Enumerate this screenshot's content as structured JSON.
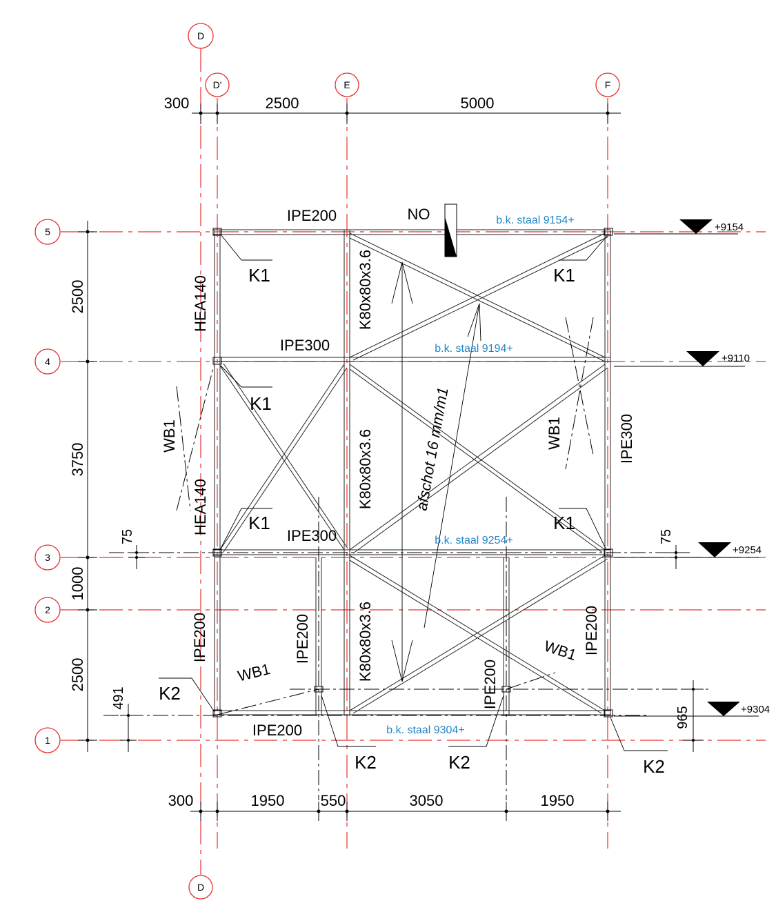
{
  "grid_labels": {
    "top_d": "D",
    "d_prime": "D'",
    "e": "E",
    "f": "F",
    "bottom_d": "D",
    "row1": "1",
    "row2": "2",
    "row3": "3",
    "row4": "4",
    "row5": "5"
  },
  "dims_top": {
    "d1": "300",
    "d2": "2500",
    "d3": "5000"
  },
  "dims_bottom": {
    "d1": "300",
    "d2": "1950",
    "d3": "550",
    "d4": "3050",
    "d5": "1950"
  },
  "dims_left": {
    "d1": "2500",
    "d2": "3750",
    "d3": "1000",
    "d4": "2500",
    "d5": "75",
    "d6": "491"
  },
  "dims_right": {
    "d1": "75",
    "d2": "965"
  },
  "levels": {
    "l1": "+9154",
    "l2": "+9110",
    "l3": "+9254",
    "l4": "+9304"
  },
  "steel_notes": {
    "n1": "b.k. staal 9154+",
    "n2": "b.k. staal 9194+",
    "n3": "b.k. staal 9254+",
    "n4": "b.k. staal 9304+"
  },
  "members": {
    "ipe200_top": "IPE200",
    "ipe300_mid": "IPE300",
    "ipe300_low": "IPE300",
    "ipe200_bottom": "IPE200",
    "hea140_upper": "HEA140",
    "hea140_lower": "HEA140",
    "k80_upper": "K80x80x3.6",
    "k80_mid": "K80x80x3.6",
    "k80_low": "K80x80x3.6",
    "ipe300_right": "IPE300",
    "ipe200_v1": "IPE200",
    "ipe200_v2": "IPE200",
    "ipe200_v3": "IPE200",
    "ipe200_v4": "IPE200"
  },
  "connections": {
    "k1_a": "K1",
    "k1_b": "K1",
    "k1_c": "K1",
    "k1_d": "K1",
    "k1_e": "K1",
    "k2_a": "K2",
    "k2_b": "K2",
    "k2_c": "K2",
    "k2_d": "K2",
    "wb1_a": "WB1",
    "wb1_b": "WB1",
    "wb1_c": "WB1",
    "wb1_d": "WB1"
  },
  "north_label": "NO",
  "slope_label": "afschot 16 mm/m1"
}
